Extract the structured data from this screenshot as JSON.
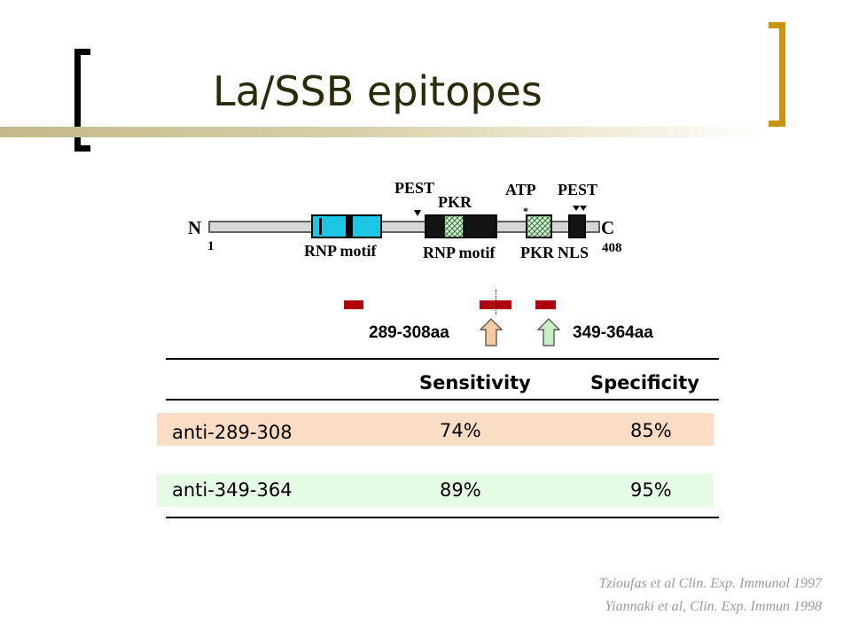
{
  "slide": {
    "title": "La/SSB epitopes"
  },
  "diagram": {
    "n_terminus": "N",
    "n_number": "1",
    "c_terminus": "C",
    "c_number": "408",
    "pest_left": "PEST",
    "pkr_top": "PKR",
    "atp": "ATP",
    "pest_right": "PEST",
    "rnp_motif_1": "RNP motif",
    "rnp_motif_2": "RNP motif",
    "pkr_bottom": "PKR",
    "nls": "NLS"
  },
  "epitopes": {
    "label_left": "289-308aa",
    "label_right": "349-364aa",
    "colors": {
      "epitope": "#b00010",
      "arrow_left": "#f6c9a0",
      "arrow_right": "#c9f0c4"
    }
  },
  "table": {
    "headers": [
      "",
      "Sensitivity",
      "Specificity"
    ],
    "rows": [
      {
        "name": "anti-289-308",
        "sensitivity": "74%",
        "specificity": "85%",
        "color": "#fbdcc4"
      },
      {
        "name": "anti-349-364",
        "sensitivity": "89%",
        "specificity": "95%",
        "color": "#e6fbe4"
      }
    ]
  },
  "citations": [
    "Tzioufas et al Clin. Exp. Immunol 1997",
    "Yiannaki et al, Clin. Exp. Immun 1998"
  ]
}
